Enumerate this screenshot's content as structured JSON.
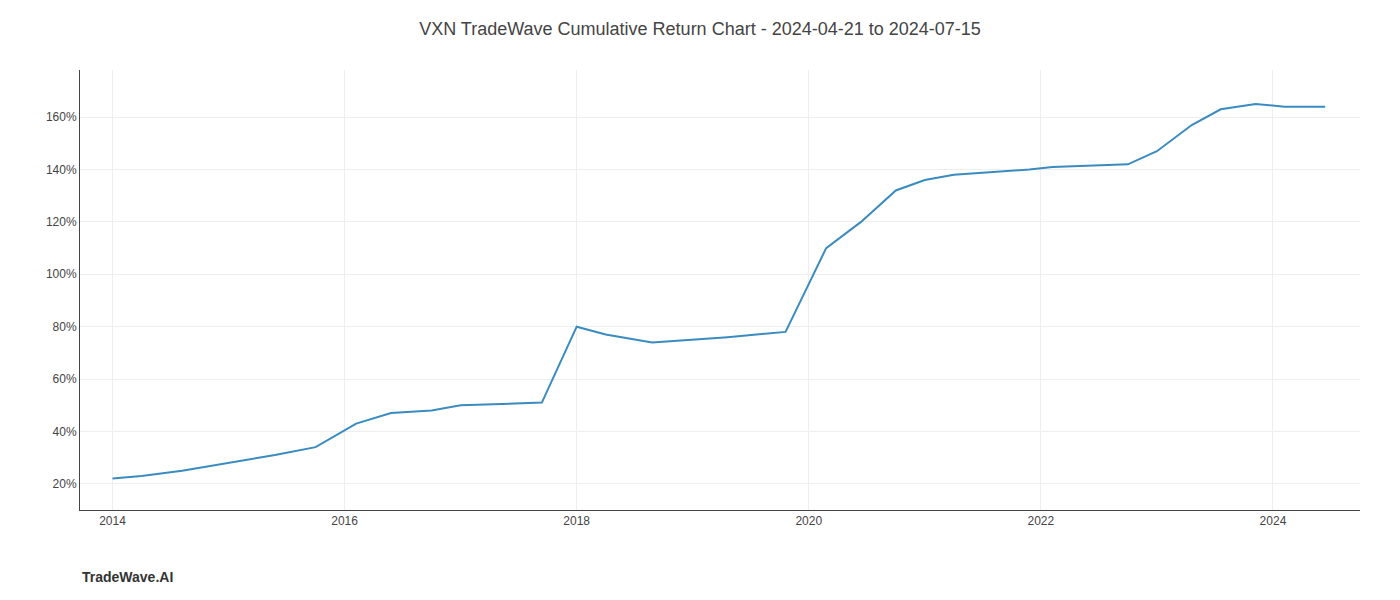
{
  "chart_data": {
    "type": "line",
    "title": "VXN TradeWave Cumulative Return Chart - 2024-04-21 to 2024-07-15",
    "annotations": [
      {
        "text": "TradeWave.AI"
      }
    ],
    "x": [
      2014.0,
      2014.25,
      2014.6,
      2015.0,
      2015.4,
      2015.75,
      2016.1,
      2016.4,
      2016.75,
      2017.0,
      2017.3,
      2017.7,
      2018.0,
      2018.25,
      2018.65,
      2019.0,
      2019.3,
      2019.55,
      2019.8,
      2020.15,
      2020.45,
      2020.75,
      2021.0,
      2021.25,
      2021.6,
      2021.9,
      2022.1,
      2022.4,
      2022.75,
      2023.0,
      2023.3,
      2023.55,
      2023.85,
      2024.1,
      2024.45
    ],
    "values": [
      22,
      23,
      25,
      28,
      31,
      34,
      43,
      47,
      48,
      50,
      50.5,
      51,
      80,
      77,
      74,
      75,
      76,
      77,
      78,
      110,
      120,
      132,
      136,
      138,
      139,
      140,
      141,
      141.5,
      142,
      147,
      157,
      163,
      165,
      164,
      164
    ],
    "color": "#3a8bbf",
    "xlim": [
      2013.72,
      2024.75
    ],
    "ylim": [
      10,
      178
    ],
    "xticks": [
      2014,
      2016,
      2018,
      2020,
      2022,
      2024
    ],
    "yticks": [
      {
        "value": 20,
        "label": "20%"
      },
      {
        "value": 40,
        "label": "40%"
      },
      {
        "value": 60,
        "label": "60%"
      },
      {
        "value": 80,
        "label": "80%"
      },
      {
        "value": 100,
        "label": "100%"
      },
      {
        "value": 120,
        "label": "120%"
      },
      {
        "value": 140,
        "label": "140%"
      },
      {
        "value": 160,
        "label": "160%"
      }
    ],
    "grid": true
  }
}
